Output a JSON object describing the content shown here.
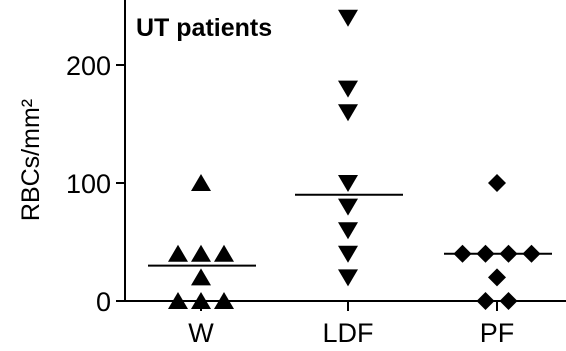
{
  "chart_data": {
    "type": "scatter",
    "title": "UT patients",
    "xlabel": "",
    "ylabel": "RBCs/mm²",
    "ylim": [
      0,
      250
    ],
    "yticks": [
      0,
      100,
      200
    ],
    "categories": [
      "W",
      "LDF",
      "PF"
    ],
    "grid": false,
    "legend": "none",
    "series": [
      {
        "category": "W",
        "marker": "triangle-up",
        "values": [
          100,
          40,
          40,
          40,
          20,
          0,
          0,
          0
        ],
        "median": 30
      },
      {
        "category": "LDF",
        "marker": "triangle-down",
        "values": [
          240,
          180,
          160,
          100,
          80,
          60,
          40,
          20
        ],
        "median": 90
      },
      {
        "category": "PF",
        "marker": "diamond",
        "values": [
          100,
          40,
          40,
          40,
          40,
          20,
          0,
          0
        ],
        "median": 40
      }
    ],
    "colors": {
      "marker": "#000000",
      "axis": "#000000",
      "median_line": "#000000"
    }
  }
}
